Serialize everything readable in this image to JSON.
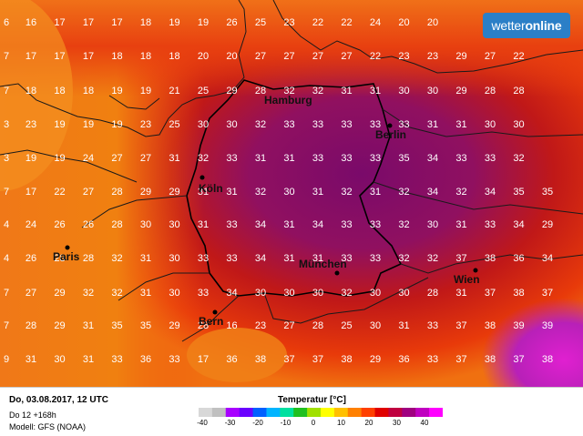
{
  "logo": {
    "text_a": "wetter",
    "text_b": "online"
  },
  "footer": {
    "date": "Do, 03.08.2017, 12 UTC",
    "run": "Do 12 +168h",
    "model": "Modell: GFS (NOAA)"
  },
  "legend": {
    "title": "Temperatur [°C]",
    "labels": [
      "-40",
      "-30",
      "-20",
      "-10",
      "0",
      "10",
      "20",
      "30",
      "40"
    ],
    "colors": [
      "#d8d8d8",
      "#c0c0c0",
      "#a800ff",
      "#6a00ff",
      "#0060ff",
      "#00b4ff",
      "#00e0a0",
      "#20c020",
      "#a0e000",
      "#ffff00",
      "#ffc000",
      "#ff8000",
      "#ff4000",
      "#e00000",
      "#c00040",
      "#a00080",
      "#c000c0",
      "#ff00ff"
    ]
  },
  "cities": [
    {
      "name": "Hamburg"
    },
    {
      "name": "Berlin"
    },
    {
      "name": "Köln"
    },
    {
      "name": "Paris"
    },
    {
      "name": "München"
    },
    {
      "name": "Wien"
    },
    {
      "name": "Bern"
    }
  ],
  "grid": [
    [
      "6",
      "16",
      "17",
      "17",
      "17",
      "18",
      "19",
      "19",
      "26",
      "25",
      "23",
      "22",
      "22",
      "24",
      "20",
      "20"
    ],
    [
      "7",
      "17",
      "17",
      "17",
      "18",
      "18",
      "18",
      "20",
      "20",
      "27",
      "27",
      "27",
      "27",
      "22",
      "23",
      "23",
      "29",
      "27",
      "22"
    ],
    [
      "7",
      "18",
      "18",
      "18",
      "19",
      "19",
      "21",
      "25",
      "29",
      "28",
      "32",
      "32",
      "31",
      "31",
      "30",
      "30",
      "29",
      "28",
      "28"
    ],
    [
      "3",
      "23",
      "19",
      "19",
      "19",
      "23",
      "25",
      "30",
      "30",
      "32",
      "33",
      "33",
      "33",
      "33",
      "33",
      "31",
      "31",
      "30",
      "30"
    ],
    [
      "3",
      "19",
      "19",
      "24",
      "27",
      "27",
      "31",
      "32",
      "33",
      "31",
      "31",
      "33",
      "33",
      "33",
      "35",
      "34",
      "33",
      "33",
      "32"
    ],
    [
      "7",
      "17",
      "22",
      "27",
      "28",
      "29",
      "29",
      "31",
      "31",
      "32",
      "30",
      "31",
      "32",
      "31",
      "32",
      "34",
      "32",
      "34",
      "35",
      "35"
    ],
    [
      "4",
      "24",
      "26",
      "26",
      "28",
      "30",
      "30",
      "31",
      "33",
      "34",
      "31",
      "34",
      "33",
      "33",
      "32",
      "30",
      "31",
      "33",
      "34",
      "29"
    ],
    [
      "4",
      "26",
      "28",
      "28",
      "32",
      "31",
      "30",
      "33",
      "33",
      "34",
      "31",
      "31",
      "33",
      "33",
      "32",
      "32",
      "37",
      "38",
      "36",
      "34"
    ],
    [
      "7",
      "27",
      "29",
      "32",
      "32",
      "31",
      "30",
      "33",
      "34",
      "30",
      "30",
      "30",
      "32",
      "30",
      "30",
      "28",
      "31",
      "37",
      "38",
      "37"
    ],
    [
      "7",
      "28",
      "29",
      "31",
      "35",
      "35",
      "29",
      "28",
      "16",
      "23",
      "27",
      "28",
      "25",
      "30",
      "31",
      "33",
      "37",
      "38",
      "39",
      "39"
    ],
    [
      "9",
      "31",
      "30",
      "31",
      "33",
      "36",
      "33",
      "17",
      "36",
      "38",
      "37",
      "37",
      "38",
      "29",
      "36",
      "33",
      "37",
      "38",
      "37",
      "38"
    ]
  ]
}
